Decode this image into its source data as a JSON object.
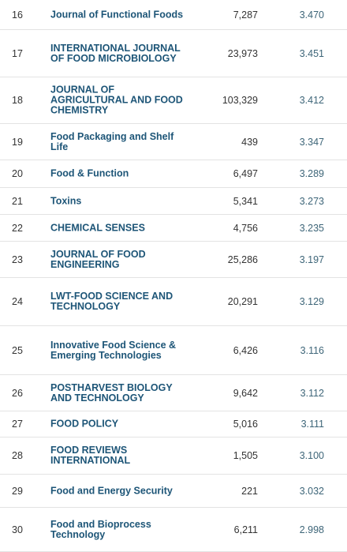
{
  "table": {
    "rows": [
      [
        "16",
        "Journal of Functional Foods",
        "7,287",
        "3.470"
      ],
      [
        "17",
        "INTERNATIONAL JOURNAL OF FOOD MICROBIOLOGY",
        "23,973",
        "3.451"
      ],
      [
        "18",
        "JOURNAL OF AGRICULTURAL AND FOOD CHEMISTRY",
        "103,329",
        "3.412"
      ],
      [
        "19",
        "Food Packaging and Shelf Life",
        "439",
        "3.347"
      ],
      [
        "20",
        "Food & Function",
        "6,497",
        "3.289"
      ],
      [
        "21",
        "Toxins",
        "5,341",
        "3.273"
      ],
      [
        "22",
        "CHEMICAL SENSES",
        "4,756",
        "3.235"
      ],
      [
        "23",
        "JOURNAL OF FOOD ENGINEERING",
        "25,286",
        "3.197"
      ],
      [
        "24",
        "LWT-FOOD SCIENCE AND TECHNOLOGY",
        "20,291",
        "3.129"
      ],
      [
        "25",
        "Innovative Food Science & Emerging Technologies",
        "6,426",
        "3.116"
      ],
      [
        "26",
        "POSTHARVEST BIOLOGY AND TECHNOLOGY",
        "9,642",
        "3.112"
      ],
      [
        "27",
        "FOOD POLICY",
        "5,016",
        "3.111"
      ],
      [
        "28",
        "FOOD REVIEWS INTERNATIONAL",
        "1,505",
        "3.100"
      ],
      [
        "29",
        "Food and Energy Security",
        "221",
        "3.032"
      ],
      [
        "30",
        "Food and Bioprocess Technology",
        "6,211",
        "2.998"
      ]
    ]
  }
}
